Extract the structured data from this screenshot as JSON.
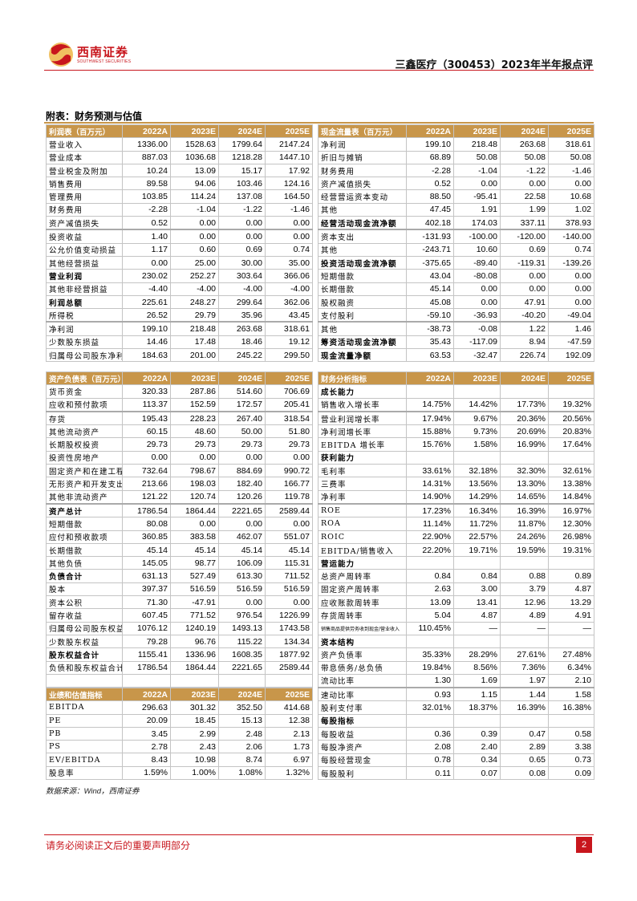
{
  "header": {
    "logo_cn": "西南证券",
    "logo_en": "SOUTHWEST SECURITIES",
    "title": "三鑫医疗（300453）2023年半年报点评"
  },
  "section_title": "附表：财务预测与估值",
  "colors": {
    "brand_red": "#c8161d",
    "header_gold": "#c8964a"
  },
  "tables": {
    "income": {
      "header": [
        "利润表（百万元）",
        "2022A",
        "2023E",
        "2024E",
        "2025E"
      ],
      "rows": [
        {
          "label": "营业收入",
          "values": [
            "1336.00",
            "1528.63",
            "1799.64",
            "2147.24"
          ]
        },
        {
          "label": "营业成本",
          "values": [
            "887.03",
            "1036.68",
            "1218.28",
            "1447.10"
          ]
        },
        {
          "label": "营业税金及附加",
          "values": [
            "10.24",
            "13.09",
            "15.17",
            "17.92"
          ]
        },
        {
          "label": "销售费用",
          "values": [
            "89.58",
            "94.06",
            "103.46",
            "124.16"
          ]
        },
        {
          "label": "管理费用",
          "values": [
            "103.85",
            "114.24",
            "137.08",
            "164.50"
          ]
        },
        {
          "label": "财务费用",
          "values": [
            "-2.28",
            "-1.04",
            "-1.22",
            "-1.46"
          ]
        },
        {
          "label": "资产减值损失",
          "values": [
            "0.52",
            "0.00",
            "0.00",
            "0.00"
          ]
        },
        {
          "label": "投资收益",
          "values": [
            "1.40",
            "0.00",
            "0.00",
            "0.00"
          ],
          "sep": true
        },
        {
          "label": "公允价值变动损益",
          "values": [
            "1.17",
            "0.60",
            "0.69",
            "0.74"
          ]
        },
        {
          "label": "其他经营损益",
          "values": [
            "0.00",
            "25.00",
            "30.00",
            "35.00"
          ]
        },
        {
          "label": "营业利润",
          "values": [
            "230.02",
            "252.27",
            "303.64",
            "366.06"
          ],
          "bold": true
        },
        {
          "label": "其他非经营损益",
          "values": [
            "-4.40",
            "-4.00",
            "-4.00",
            "-4.00"
          ]
        },
        {
          "label": "利润总额",
          "values": [
            "225.61",
            "248.27",
            "299.64",
            "362.06"
          ],
          "bold": true
        },
        {
          "label": "所得税",
          "values": [
            "26.52",
            "29.79",
            "35.96",
            "43.45"
          ]
        },
        {
          "label": "净利润",
          "values": [
            "199.10",
            "218.48",
            "263.68",
            "318.61"
          ],
          "sep": true
        },
        {
          "label": "少数股东损益",
          "values": [
            "14.46",
            "17.48",
            "18.46",
            "19.12"
          ]
        },
        {
          "label": "归属母公司股东净利润",
          "values": [
            "184.63",
            "201.00",
            "245.22",
            "299.50"
          ]
        }
      ]
    },
    "cashflow": {
      "header": [
        "现金流量表（百万元）",
        "2022A",
        "2023E",
        "2024E",
        "2025E"
      ],
      "rows": [
        {
          "label": "净利润",
          "values": [
            "199.10",
            "218.48",
            "263.68",
            "318.61"
          ]
        },
        {
          "label": "折旧与摊销",
          "values": [
            "68.89",
            "50.08",
            "50.08",
            "50.08"
          ]
        },
        {
          "label": "财务费用",
          "values": [
            "-2.28",
            "-1.04",
            "-1.22",
            "-1.46"
          ]
        },
        {
          "label": "资产减值损失",
          "values": [
            "0.52",
            "0.00",
            "0.00",
            "0.00"
          ]
        },
        {
          "label": "经营营运资本变动",
          "values": [
            "88.50",
            "-95.41",
            "22.58",
            "10.68"
          ]
        },
        {
          "label": "其他",
          "values": [
            "47.45",
            "1.91",
            "1.99",
            "1.02"
          ]
        },
        {
          "label": "经营活动现金流净额",
          "values": [
            "402.18",
            "174.03",
            "337.11",
            "378.93"
          ],
          "bold": true
        },
        {
          "label": "资本支出",
          "values": [
            "-131.93",
            "-100.00",
            "-120.00",
            "-140.00"
          ],
          "sep": true
        },
        {
          "label": "其他",
          "values": [
            "-243.71",
            "10.60",
            "0.69",
            "0.74"
          ]
        },
        {
          "label": "投资活动现金流净额",
          "values": [
            "-375.65",
            "-89.40",
            "-119.31",
            "-139.26"
          ],
          "bold": true
        },
        {
          "label": "短期借款",
          "values": [
            "43.04",
            "-80.08",
            "0.00",
            "0.00"
          ]
        },
        {
          "label": "长期借款",
          "values": [
            "45.14",
            "0.00",
            "0.00",
            "0.00"
          ]
        },
        {
          "label": "股权融资",
          "values": [
            "45.08",
            "0.00",
            "47.91",
            "0.00"
          ]
        },
        {
          "label": "支付股利",
          "values": [
            "-59.10",
            "-36.93",
            "-40.20",
            "-49.04"
          ]
        },
        {
          "label": "其他",
          "values": [
            "-38.73",
            "-0.08",
            "1.22",
            "1.46"
          ],
          "sep": true
        },
        {
          "label": "筹资活动现金流净额",
          "values": [
            "35.43",
            "-117.09",
            "8.94",
            "-47.59"
          ],
          "bold": true
        },
        {
          "label": "现金流量净额",
          "values": [
            "63.53",
            "-32.47",
            "226.74",
            "192.09"
          ],
          "bold": true
        }
      ]
    },
    "balance": {
      "header": [
        "资产负债表（百万元）",
        "2022A",
        "2023E",
        "2024E",
        "2025E"
      ],
      "rows": [
        {
          "label": "货币资金",
          "values": [
            "320.33",
            "287.86",
            "514.60",
            "706.69"
          ]
        },
        {
          "label": "应收和预付款项",
          "values": [
            "113.37",
            "152.59",
            "172.57",
            "205.41"
          ]
        },
        {
          "label": "存货",
          "values": [
            "195.43",
            "228.23",
            "267.40",
            "318.54"
          ],
          "sep": true
        },
        {
          "label": "其他流动资产",
          "values": [
            "60.15",
            "48.60",
            "50.00",
            "51.80"
          ]
        },
        {
          "label": "长期股权投资",
          "values": [
            "29.73",
            "29.73",
            "29.73",
            "29.73"
          ]
        },
        {
          "label": "投资性房地产",
          "values": [
            "0.00",
            "0.00",
            "0.00",
            "0.00"
          ]
        },
        {
          "label": "固定资产和在建工程",
          "values": [
            "732.64",
            "798.67",
            "884.69",
            "990.72"
          ]
        },
        {
          "label": "无形资产和开发支出",
          "values": [
            "213.66",
            "198.03",
            "182.40",
            "166.77"
          ]
        },
        {
          "label": "其他非流动资产",
          "values": [
            "121.22",
            "120.74",
            "120.26",
            "119.78"
          ]
        },
        {
          "label": "资产总计",
          "values": [
            "1786.54",
            "1864.44",
            "2221.65",
            "2589.44"
          ],
          "bold": true,
          "sep": true
        },
        {
          "label": "短期借款",
          "values": [
            "80.08",
            "0.00",
            "0.00",
            "0.00"
          ]
        },
        {
          "label": "应付和预收款项",
          "values": [
            "360.85",
            "383.58",
            "462.07",
            "551.07"
          ]
        },
        {
          "label": "长期借款",
          "values": [
            "45.14",
            "45.14",
            "45.14",
            "45.14"
          ]
        },
        {
          "label": "其他负债",
          "values": [
            "145.05",
            "98.77",
            "106.09",
            "115.31"
          ]
        },
        {
          "label": "负债合计",
          "values": [
            "631.13",
            "527.49",
            "613.30",
            "711.52"
          ],
          "bold": true
        },
        {
          "label": "股本",
          "values": [
            "397.37",
            "516.59",
            "516.59",
            "516.59"
          ]
        },
        {
          "label": "资本公积",
          "values": [
            "71.30",
            "-47.91",
            "0.00",
            "0.00"
          ]
        },
        {
          "label": "留存收益",
          "values": [
            "607.45",
            "771.52",
            "976.54",
            "1226.99"
          ]
        },
        {
          "label": "归属母公司股东权益",
          "values": [
            "1076.12",
            "1240.19",
            "1493.13",
            "1743.58"
          ]
        },
        {
          "label": "少数股东权益",
          "values": [
            "79.28",
            "96.76",
            "115.22",
            "134.34"
          ]
        },
        {
          "label": "股东权益合计",
          "values": [
            "1155.41",
            "1336.96",
            "1608.35",
            "1877.92"
          ],
          "bold": true
        },
        {
          "label": "负债和股东权益合计",
          "values": [
            "1786.54",
            "1864.44",
            "2221.65",
            "2589.44"
          ]
        },
        {
          "label": "",
          "values": [
            "",
            "",
            "",
            ""
          ]
        }
      ]
    },
    "valuation": {
      "header": [
        "业绩和估值指标",
        "2022A",
        "2023E",
        "2024E",
        "2025E"
      ],
      "rows": [
        {
          "label": "EBITDA",
          "values": [
            "296.63",
            "301.32",
            "352.50",
            "414.68"
          ]
        },
        {
          "label": "PE",
          "values": [
            "20.09",
            "18.45",
            "15.13",
            "12.38"
          ]
        },
        {
          "label": "PB",
          "values": [
            "3.45",
            "2.99",
            "2.48",
            "2.13"
          ]
        },
        {
          "label": "PS",
          "values": [
            "2.78",
            "2.43",
            "2.06",
            "1.73"
          ]
        },
        {
          "label": "EV/EBITDA",
          "values": [
            "8.43",
            "10.98",
            "8.74",
            "6.97"
          ]
        },
        {
          "label": "股息率",
          "values": [
            "1.59%",
            "1.00%",
            "1.08%",
            "1.32%"
          ]
        }
      ]
    },
    "ratios": {
      "header": [
        "财务分析指标",
        "2022A",
        "2023E",
        "2024E",
        "2025E"
      ],
      "rows": [
        {
          "label": "成长能力",
          "values": [
            "",
            "",
            "",
            ""
          ],
          "bold": true
        },
        {
          "label": "销售收入增长率",
          "values": [
            "14.75%",
            "14.42%",
            "17.73%",
            "19.32%"
          ]
        },
        {
          "label": "营业利润增长率",
          "values": [
            "17.94%",
            "9.67%",
            "20.36%",
            "20.56%"
          ],
          "sep": true
        },
        {
          "label": "净利润增长率",
          "values": [
            "15.88%",
            "9.73%",
            "20.69%",
            "20.83%"
          ]
        },
        {
          "label": "EBITDA 增长率",
          "values": [
            "15.76%",
            "1.58%",
            "16.99%",
            "17.64%"
          ]
        },
        {
          "label": "获利能力",
          "values": [
            "",
            "",
            "",
            ""
          ],
          "bold": true
        },
        {
          "label": "毛利率",
          "values": [
            "33.61%",
            "32.18%",
            "32.30%",
            "32.61%"
          ]
        },
        {
          "label": "三费率",
          "values": [
            "14.31%",
            "13.56%",
            "13.30%",
            "13.38%"
          ]
        },
        {
          "label": "净利率",
          "values": [
            "14.90%",
            "14.29%",
            "14.65%",
            "14.84%"
          ]
        },
        {
          "label": "ROE",
          "values": [
            "17.23%",
            "16.34%",
            "16.39%",
            "16.97%"
          ],
          "sep": true
        },
        {
          "label": "ROA",
          "values": [
            "11.14%",
            "11.72%",
            "11.87%",
            "12.30%"
          ]
        },
        {
          "label": "ROIC",
          "values": [
            "22.90%",
            "22.57%",
            "24.26%",
            "26.98%"
          ]
        },
        {
          "label": "EBITDA/销售收入",
          "values": [
            "22.20%",
            "19.71%",
            "19.59%",
            "19.31%"
          ]
        },
        {
          "label": "营运能力",
          "values": [
            "",
            "",
            "",
            ""
          ],
          "bold": true
        },
        {
          "label": "总资产周转率",
          "values": [
            "0.84",
            "0.84",
            "0.88",
            "0.89"
          ]
        },
        {
          "label": "固定资产周转率",
          "values": [
            "2.63",
            "3.00",
            "3.79",
            "4.87"
          ]
        },
        {
          "label": "应收账款周转率",
          "values": [
            "13.09",
            "13.41",
            "12.96",
            "13.29"
          ]
        },
        {
          "label": "存货周转率",
          "values": [
            "5.04",
            "4.87",
            "4.89",
            "4.91"
          ]
        },
        {
          "label": "销售商品提供劳务收到现金/营业收入",
          "values": [
            "110.45%",
            "—",
            "—",
            "—"
          ],
          "small": true
        },
        {
          "label": "资本结构",
          "values": [
            "",
            "",
            "",
            ""
          ],
          "bold": true
        },
        {
          "label": "资产负债率",
          "values": [
            "35.33%",
            "28.29%",
            "27.61%",
            "27.48%"
          ]
        },
        {
          "label": "带息债务/总负债",
          "values": [
            "19.84%",
            "8.56%",
            "7.36%",
            "6.34%"
          ]
        },
        {
          "label": "流动比率",
          "values": [
            "1.30",
            "1.69",
            "1.97",
            "2.10"
          ]
        },
        {
          "label": "速动比率",
          "values": [
            "0.93",
            "1.15",
            "1.44",
            "1.58"
          ],
          "sep": true
        },
        {
          "label": "股利支付率",
          "values": [
            "32.01%",
            "18.37%",
            "16.39%",
            "16.38%"
          ]
        },
        {
          "label": "每股指标",
          "values": [
            "",
            "",
            "",
            ""
          ],
          "bold": true
        },
        {
          "label": "每股收益",
          "values": [
            "0.36",
            "0.39",
            "0.47",
            "0.58"
          ]
        },
        {
          "label": "每股净资产",
          "values": [
            "2.08",
            "2.40",
            "2.89",
            "3.38"
          ]
        },
        {
          "label": "每股经营现金",
          "values": [
            "0.78",
            "0.34",
            "0.65",
            "0.73"
          ]
        },
        {
          "label": "每股股利",
          "values": [
            "0.11",
            "0.07",
            "0.08",
            "0.09"
          ]
        }
      ]
    }
  },
  "source": "数据来源：Wind，西南证券",
  "footer": {
    "disclaimer": "请务必阅读正文后的重要声明部分",
    "page": "2"
  }
}
